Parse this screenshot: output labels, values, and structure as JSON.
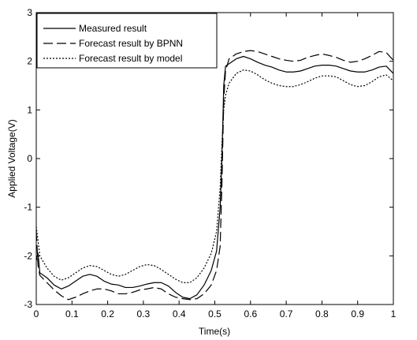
{
  "chart_data": {
    "type": "line",
    "title": "",
    "xlabel": "Time(s)",
    "ylabel": "Applied Voltage(V)",
    "xlim": [
      0,
      1
    ],
    "ylim": [
      -3,
      3
    ],
    "xticks": [
      0,
      0.1,
      0.2,
      0.3,
      0.4,
      0.5,
      0.6,
      0.7,
      0.8,
      0.9,
      1
    ],
    "xtick_labels": [
      "0",
      "0.1",
      "0.2",
      "0.3",
      "0.4",
      "0.5",
      "0.6",
      "0.7",
      "0.8",
      "0.9",
      "1"
    ],
    "yticks": [
      -3,
      -2,
      -1,
      0,
      1,
      2,
      3
    ],
    "ytick_labels": [
      "-3",
      "-2",
      "-1",
      "0",
      "1",
      "2",
      "3"
    ],
    "grid": false,
    "legend_position": "top-left",
    "series": [
      {
        "name": "Measured result",
        "style": "solid",
        "color": "#000000",
        "x": [
          0,
          0.005,
          0.01,
          0.03,
          0.05,
          0.07,
          0.09,
          0.11,
          0.13,
          0.15,
          0.17,
          0.19,
          0.21,
          0.23,
          0.25,
          0.27,
          0.29,
          0.31,
          0.33,
          0.35,
          0.37,
          0.39,
          0.41,
          0.43,
          0.45,
          0.47,
          0.49,
          0.505,
          0.515,
          0.52,
          0.525,
          0.53,
          0.54,
          0.56,
          0.58,
          0.6,
          0.62,
          0.64,
          0.66,
          0.68,
          0.7,
          0.72,
          0.74,
          0.76,
          0.78,
          0.8,
          0.82,
          0.84,
          0.86,
          0.88,
          0.9,
          0.92,
          0.94,
          0.96,
          0.98,
          1.0
        ],
        "y": [
          -2.1,
          -1.95,
          -2.35,
          -2.45,
          -2.6,
          -2.68,
          -2.62,
          -2.52,
          -2.42,
          -2.38,
          -2.42,
          -2.52,
          -2.58,
          -2.6,
          -2.65,
          -2.65,
          -2.62,
          -2.58,
          -2.55,
          -2.55,
          -2.62,
          -2.75,
          -2.85,
          -2.88,
          -2.8,
          -2.6,
          -2.3,
          -1.9,
          -1.0,
          0.0,
          1.5,
          1.9,
          1.95,
          2.05,
          2.1,
          2.05,
          1.98,
          1.92,
          1.88,
          1.82,
          1.78,
          1.78,
          1.8,
          1.85,
          1.9,
          1.92,
          1.92,
          1.9,
          1.85,
          1.8,
          1.78,
          1.78,
          1.82,
          1.88,
          1.9,
          1.75
        ]
      },
      {
        "name": "Forecast result by BPNN",
        "style": "dashed",
        "color": "#000000",
        "x": [
          0,
          0.005,
          0.01,
          0.03,
          0.05,
          0.07,
          0.09,
          0.11,
          0.13,
          0.15,
          0.17,
          0.19,
          0.21,
          0.23,
          0.25,
          0.27,
          0.29,
          0.31,
          0.33,
          0.35,
          0.37,
          0.39,
          0.41,
          0.43,
          0.45,
          0.47,
          0.49,
          0.505,
          0.515,
          0.52,
          0.525,
          0.53,
          0.54,
          0.56,
          0.58,
          0.6,
          0.62,
          0.64,
          0.66,
          0.68,
          0.7,
          0.72,
          0.74,
          0.76,
          0.78,
          0.8,
          0.82,
          0.84,
          0.86,
          0.88,
          0.9,
          0.92,
          0.94,
          0.96,
          0.98,
          1.0
        ],
        "y": [
          -1.5,
          -2.2,
          -2.4,
          -2.55,
          -2.7,
          -2.82,
          -2.9,
          -2.85,
          -2.78,
          -2.72,
          -2.68,
          -2.68,
          -2.72,
          -2.78,
          -2.78,
          -2.75,
          -2.7,
          -2.68,
          -2.65,
          -2.68,
          -2.78,
          -2.85,
          -2.88,
          -2.9,
          -2.88,
          -2.78,
          -2.6,
          -2.3,
          -1.8,
          -0.5,
          1.2,
          1.8,
          2.05,
          2.15,
          2.2,
          2.22,
          2.2,
          2.15,
          2.1,
          2.05,
          2.02,
          2.0,
          2.02,
          2.08,
          2.12,
          2.15,
          2.12,
          2.08,
          2.02,
          1.98,
          2.0,
          2.05,
          2.12,
          2.2,
          2.18,
          2.02
        ]
      },
      {
        "name": "Forecast result by model",
        "style": "dotted",
        "color": "#000000",
        "x": [
          0,
          0.005,
          0.01,
          0.03,
          0.05,
          0.07,
          0.09,
          0.11,
          0.13,
          0.15,
          0.17,
          0.19,
          0.21,
          0.23,
          0.25,
          0.27,
          0.29,
          0.31,
          0.33,
          0.35,
          0.37,
          0.39,
          0.41,
          0.43,
          0.45,
          0.47,
          0.49,
          0.505,
          0.515,
          0.52,
          0.525,
          0.53,
          0.54,
          0.56,
          0.58,
          0.6,
          0.62,
          0.64,
          0.66,
          0.68,
          0.7,
          0.72,
          0.74,
          0.76,
          0.78,
          0.8,
          0.82,
          0.84,
          0.86,
          0.88,
          0.9,
          0.92,
          0.94,
          0.96,
          0.98,
          1.0
        ],
        "y": [
          -1.4,
          -1.7,
          -2.0,
          -2.25,
          -2.42,
          -2.5,
          -2.45,
          -2.35,
          -2.25,
          -2.2,
          -2.22,
          -2.3,
          -2.38,
          -2.42,
          -2.38,
          -2.3,
          -2.22,
          -2.18,
          -2.2,
          -2.28,
          -2.38,
          -2.48,
          -2.55,
          -2.55,
          -2.45,
          -2.25,
          -1.95,
          -1.5,
          -0.6,
          0.3,
          1.0,
          1.3,
          1.55,
          1.75,
          1.82,
          1.8,
          1.72,
          1.62,
          1.55,
          1.5,
          1.48,
          1.48,
          1.52,
          1.58,
          1.65,
          1.7,
          1.7,
          1.68,
          1.6,
          1.52,
          1.48,
          1.5,
          1.58,
          1.68,
          1.72,
          1.6
        ]
      }
    ]
  }
}
